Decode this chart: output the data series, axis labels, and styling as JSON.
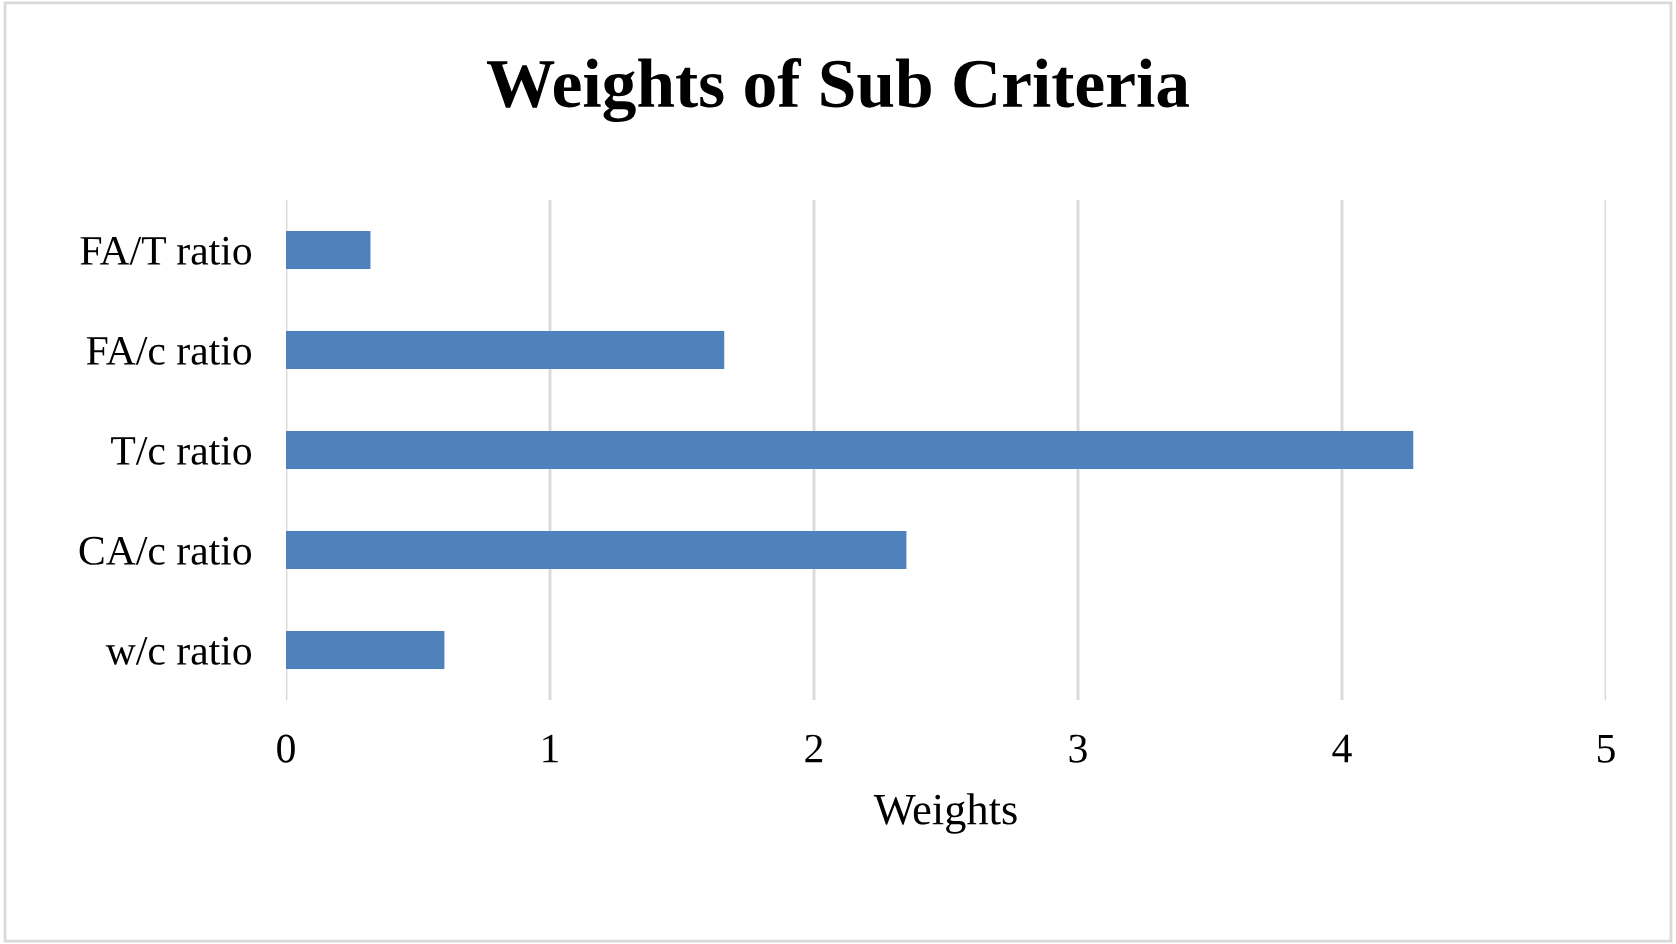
{
  "chart_data": {
    "type": "bar",
    "orientation": "horizontal",
    "title": "Weights of Sub Criteria",
    "xlabel": "Weights",
    "categories": [
      "FA/T ratio",
      "FA/c ratio",
      "T/c ratio",
      "CA/c ratio",
      "w/c ratio"
    ],
    "values": [
      0.32,
      1.66,
      4.27,
      2.35,
      0.6
    ],
    "color": "#4f81bd",
    "xlim": [
      0,
      5
    ],
    "xticks": [
      0,
      1,
      2,
      3,
      4,
      5
    ],
    "grid": "x"
  }
}
